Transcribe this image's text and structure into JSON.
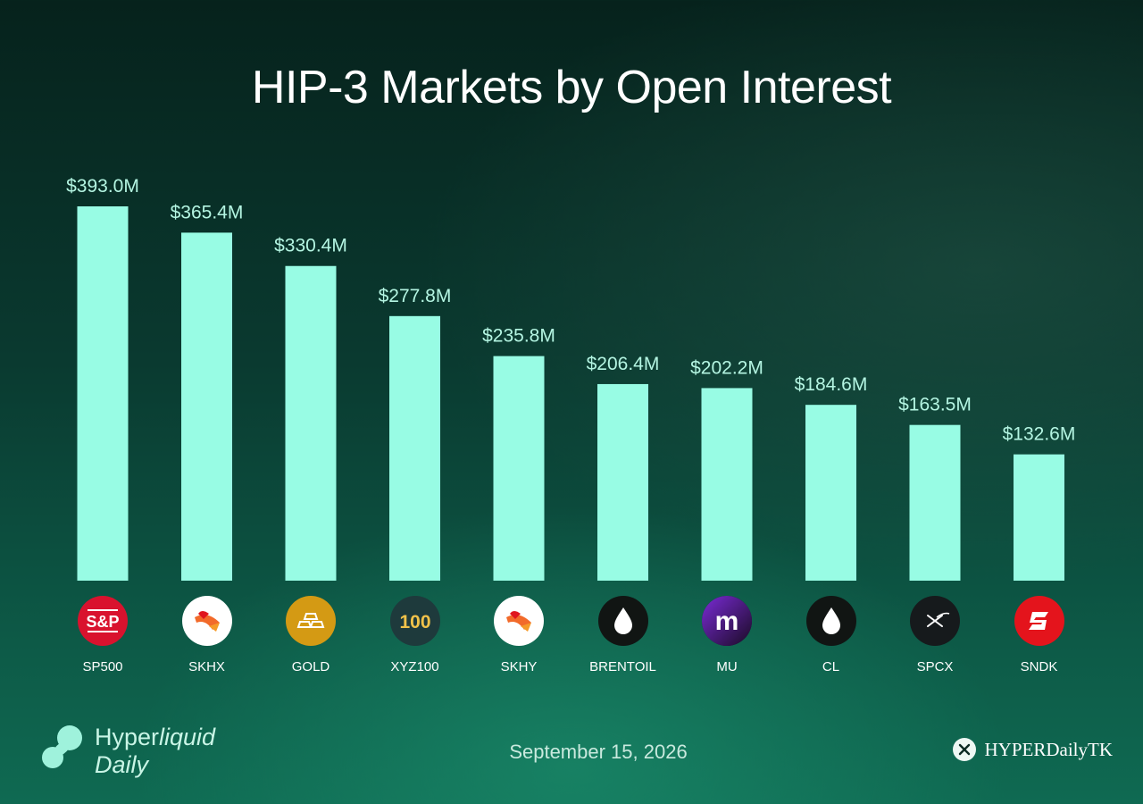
{
  "chart_data": {
    "type": "bar",
    "title": "HIP-3 Markets by Open Interest",
    "categories": [
      "SP500",
      "SKHX",
      "GOLD",
      "XYZ100",
      "SKHY",
      "BRENTOIL",
      "MU",
      "CL",
      "SPCX",
      "SNDK"
    ],
    "values": [
      393.0,
      365.4,
      330.4,
      277.8,
      235.8,
      206.4,
      202.2,
      184.6,
      163.5,
      132.6
    ],
    "value_labels": [
      "$393.0M",
      "$365.4M",
      "$330.4M",
      "$277.8M",
      "$235.8M",
      "$206.4M",
      "$202.2M",
      "$184.6M",
      "$163.5M",
      "$132.6M"
    ],
    "unit": "USD millions",
    "ylim": [
      0,
      393.0
    ],
    "bar_color": "#98fce4",
    "grid": false,
    "legend": "none"
  },
  "icons": [
    {
      "name": "sp500-icon",
      "text": "S&P",
      "bg": "#d9122e"
    },
    {
      "name": "skhx-icon",
      "bg": "#ffffff"
    },
    {
      "name": "gold-icon",
      "bg": "#d49a14"
    },
    {
      "name": "xyz100-icon",
      "text": "100",
      "bg": "#1e3a3c"
    },
    {
      "name": "skhy-icon",
      "bg": "#ffffff"
    },
    {
      "name": "brentoil-drop-icon",
      "bg": "#111513"
    },
    {
      "name": "mu-icon",
      "text": "m",
      "bg": "#1a0b24"
    },
    {
      "name": "cl-drop-icon",
      "bg": "#111513"
    },
    {
      "name": "spcx-icon",
      "bg": "#161a1c"
    },
    {
      "name": "sndk-icon",
      "bg": "#e4141c"
    }
  ],
  "footer": {
    "brand_line1_a": "Hyper",
    "brand_line1_b": "liquid",
    "brand_line2": "Daily",
    "date": "September 15, 2026",
    "handle": "HYPERDailyTK"
  }
}
